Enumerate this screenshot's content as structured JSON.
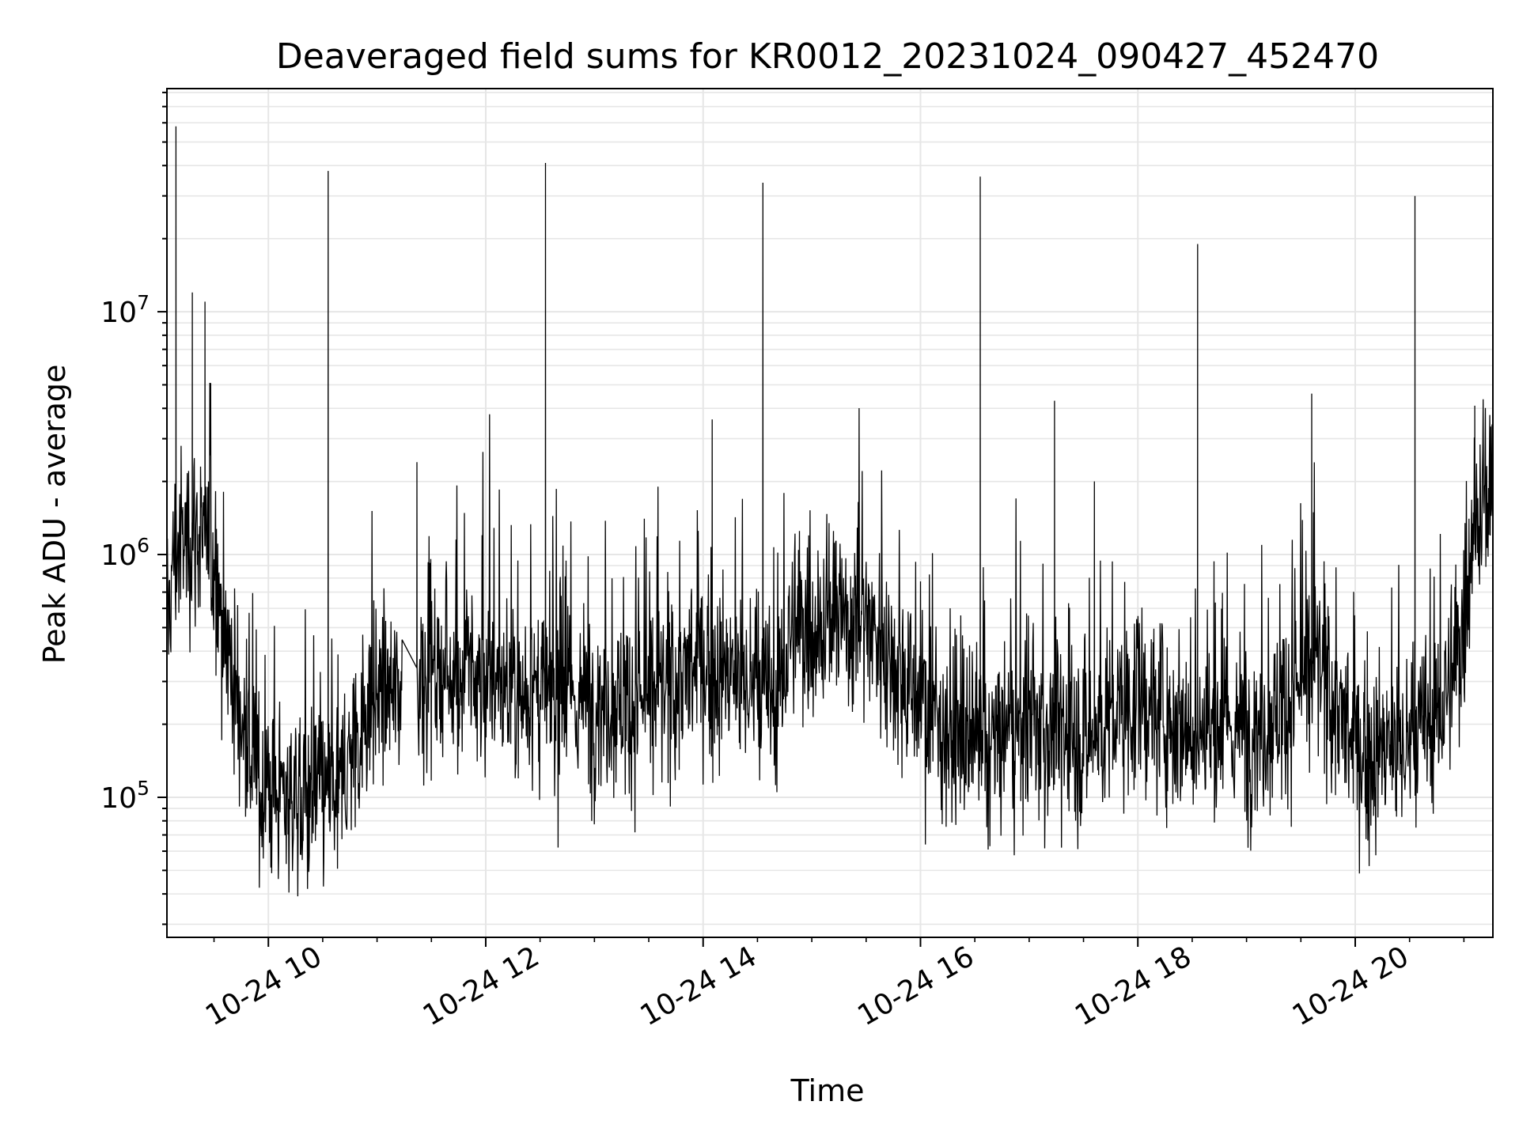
{
  "chart_data": {
    "type": "line",
    "title": "Deaveraged field sums for KR0012_20231024_090427_452470",
    "xlabel": "Time",
    "ylabel": "Peak ADU - average",
    "x_scale": "time",
    "y_scale": "log",
    "xlim": [
      "2023-10-24 09:04",
      "2023-10-24 21:16"
    ],
    "ylim": [
      26500,
      83000000
    ],
    "x_ticks": [
      {
        "value": "2023-10-24 10:00",
        "label": "10-24 10"
      },
      {
        "value": "2023-10-24 12:00",
        "label": "10-24 12"
      },
      {
        "value": "2023-10-24 14:00",
        "label": "10-24 14"
      },
      {
        "value": "2023-10-24 16:00",
        "label": "10-24 16"
      },
      {
        "value": "2023-10-24 18:00",
        "label": "10-24 18"
      },
      {
        "value": "2023-10-24 20:00",
        "label": "10-24 20"
      }
    ],
    "y_ticks": [
      {
        "value": 100000,
        "base": "10",
        "exp": "5"
      },
      {
        "value": 1000000,
        "base": "10",
        "exp": "6"
      },
      {
        "value": 10000000,
        "base": "10",
        "exp": "7"
      }
    ],
    "grid": true,
    "line_color": "#000000",
    "grid_color": "#e6e6e6",
    "gap": [
      "2023-10-24 11:14",
      "2023-10-24 11:23"
    ],
    "series": [
      {
        "baseline": [
          [
            "2023-10-24 09:04",
            500000
          ],
          [
            "2023-10-24 09:08",
            1000000
          ],
          [
            "2023-10-24 09:20",
            1300000
          ],
          [
            "2023-10-24 09:30",
            900000
          ],
          [
            "2023-10-24 09:36",
            500000
          ],
          [
            "2023-10-24 09:45",
            200000
          ],
          [
            "2023-10-24 09:55",
            110000
          ],
          [
            "2023-10-24 10:20",
            100000
          ],
          [
            "2023-10-24 10:40",
            110000
          ],
          [
            "2023-10-24 10:55",
            250000
          ],
          [
            "2023-10-24 11:14",
            280000
          ],
          [
            "2023-10-24 11:23",
            350000
          ],
          [
            "2023-10-24 12:00",
            300000
          ],
          [
            "2023-10-24 12:40",
            250000
          ],
          [
            "2023-10-24 13:30",
            250000
          ],
          [
            "2023-10-24 14:00",
            350000
          ],
          [
            "2023-10-24 14:20",
            300000
          ],
          [
            "2023-10-24 14:40",
            250000
          ],
          [
            "2023-10-24 14:50",
            500000
          ],
          [
            "2023-10-24 15:30",
            550000
          ],
          [
            "2023-10-24 16:00",
            250000
          ],
          [
            "2023-10-24 16:30",
            150000
          ],
          [
            "2023-10-24 17:00",
            200000
          ],
          [
            "2023-10-24 17:30",
            170000
          ],
          [
            "2023-10-24 18:00",
            250000
          ],
          [
            "2023-10-24 18:40",
            180000
          ],
          [
            "2023-10-24 19:10",
            200000
          ],
          [
            "2023-10-24 19:40",
            350000
          ],
          [
            "2023-10-24 20:00",
            150000
          ],
          [
            "2023-10-24 20:30",
            160000
          ],
          [
            "2023-10-24 20:50",
            250000
          ],
          [
            "2023-10-24 21:00",
            500000
          ],
          [
            "2023-10-24 21:05",
            1500000
          ],
          [
            "2023-10-24 21:16",
            1600000
          ]
        ],
        "spikes": [
          [
            "2023-10-24 09:09",
            58000000
          ],
          [
            "2023-10-24 09:18",
            12000000
          ],
          [
            "2023-10-24 09:25",
            11000000
          ],
          [
            "2023-10-24 10:33",
            38000000
          ],
          [
            "2023-10-24 11:22",
            2400000
          ],
          [
            "2023-10-24 12:33",
            41000000
          ],
          [
            "2023-10-24 14:05",
            3600000
          ],
          [
            "2023-10-24 14:33",
            34000000
          ],
          [
            "2023-10-24 16:33",
            36000000
          ],
          [
            "2023-10-24 17:14",
            4300000
          ],
          [
            "2023-10-24 17:36",
            2000000
          ],
          [
            "2023-10-24 18:33",
            19000000
          ],
          [
            "2023-10-24 19:36",
            4600000
          ],
          [
            "2023-10-24 20:33",
            30000000
          ],
          [
            "2023-10-24 21:06",
            4100000
          ]
        ]
      }
    ]
  }
}
